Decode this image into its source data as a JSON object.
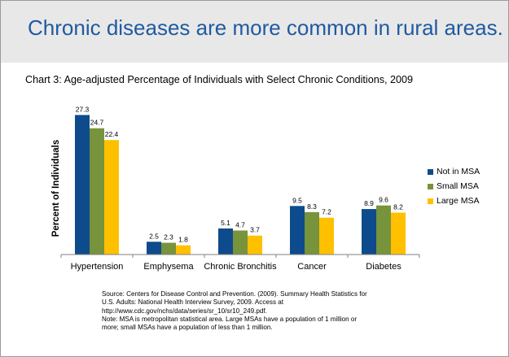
{
  "banner": {
    "title": "Chronic diseases are more common in rural areas."
  },
  "chart_data": {
    "type": "bar",
    "title": "Chart 3: Age-adjusted Percentage of Individuals with Select Chronic Conditions, 2009",
    "ylabel": "Percent of Individuals",
    "xlabel": "",
    "categories": [
      "Hypertension",
      "Emphysema",
      "Chronic Bronchitis",
      "Cancer",
      "Diabetes"
    ],
    "series": [
      {
        "name": "Not in MSA",
        "color": "#0e4b8c",
        "values": [
          27.3,
          2.5,
          5.1,
          9.5,
          8.9
        ]
      },
      {
        "name": "Small MSA",
        "color": "#77933c",
        "values": [
          24.7,
          2.3,
          4.7,
          8.3,
          9.6
        ]
      },
      {
        "name": "Large MSA",
        "color": "#ffc000",
        "values": [
          22.4,
          1.8,
          3.7,
          7.2,
          8.2
        ]
      }
    ],
    "ylim": [
      0,
      28
    ],
    "grid": false,
    "legend": "right"
  },
  "source": {
    "lines": [
      "Source: Centers for Disease Control and Prevention. (2009). Summary Health Statistics for",
      "U.S. Adults: National Health Interview Survey, 2009. Access at",
      "http://www.cdc.gov/nchs/data/series/sr_10/sr10_249.pdf.",
      "Note: MSA is metropolitan statistical area. Large MSAs have a population of 1 million or",
      "more; small MSAs have a population of less than 1 million."
    ]
  }
}
